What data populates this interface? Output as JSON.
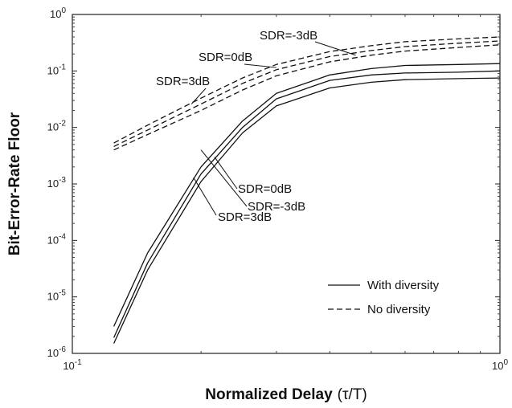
{
  "chart_data": {
    "type": "line",
    "title": "",
    "xlabel": "Normalized Delay",
    "xlabel_unit": "(τ/T)",
    "ylabel": "Bit-Error-Rate Floor",
    "xscale": "log",
    "yscale": "log",
    "xlim": [
      0.1,
      1
    ],
    "ylim": [
      1e-06,
      1
    ],
    "grid": false,
    "legend": {
      "placement": "bottom-right",
      "entries": [
        {
          "label": "With diversity",
          "style": "solid"
        },
        {
          "label": "No diversity",
          "style": "dashed"
        }
      ]
    },
    "x_ticks": [
      {
        "value": 0.1,
        "base": "10",
        "exp": "-1"
      },
      {
        "value": 1,
        "base": "10",
        "exp": "0"
      }
    ],
    "y_ticks": [
      {
        "value": 1e-06,
        "base": "10",
        "exp": "-6"
      },
      {
        "value": 1e-05,
        "base": "10",
        "exp": "-5"
      },
      {
        "value": 0.0001,
        "base": "10",
        "exp": "-4"
      },
      {
        "value": 0.001,
        "base": "10",
        "exp": "-3"
      },
      {
        "value": 0.01,
        "base": "10",
        "exp": "-2"
      },
      {
        "value": 0.1,
        "base": "10",
        "exp": "-1"
      },
      {
        "value": 1,
        "base": "10",
        "exp": "0"
      }
    ],
    "series": [
      {
        "style": "solid",
        "x": [
          0.125,
          0.15,
          0.2,
          0.25,
          0.3,
          0.4,
          0.5,
          0.6,
          0.8,
          1.0
        ],
        "y": [
          3e-06,
          6e-05,
          0.002,
          0.013,
          0.04,
          0.085,
          0.11,
          0.125,
          0.13,
          0.135
        ]
      },
      {
        "style": "solid",
        "x": [
          0.125,
          0.15,
          0.2,
          0.25,
          0.3,
          0.4,
          0.5,
          0.6,
          0.8,
          1.0
        ],
        "y": [
          1.9e-06,
          4e-05,
          0.0015,
          0.01,
          0.032,
          0.068,
          0.085,
          0.092,
          0.095,
          0.1
        ]
      },
      {
        "style": "solid",
        "x": [
          0.125,
          0.15,
          0.2,
          0.25,
          0.3,
          0.4,
          0.5,
          0.6,
          0.8,
          1.0
        ],
        "y": [
          1.5e-06,
          3e-05,
          0.0011,
          0.008,
          0.024,
          0.05,
          0.063,
          0.07,
          0.073,
          0.075
        ]
      },
      {
        "style": "dashed",
        "x": [
          0.125,
          0.15,
          0.2,
          0.25,
          0.3,
          0.4,
          0.5,
          0.6,
          0.8,
          1.0
        ],
        "y": [
          0.0053,
          0.011,
          0.033,
          0.075,
          0.13,
          0.22,
          0.28,
          0.33,
          0.37,
          0.4
        ]
      },
      {
        "style": "dashed",
        "x": [
          0.125,
          0.15,
          0.2,
          0.25,
          0.3,
          0.4,
          0.5,
          0.6,
          0.8,
          1.0
        ],
        "y": [
          0.0046,
          0.009,
          0.026,
          0.06,
          0.105,
          0.18,
          0.23,
          0.27,
          0.31,
          0.34
        ]
      },
      {
        "style": "dashed",
        "x": [
          0.125,
          0.15,
          0.2,
          0.25,
          0.3,
          0.4,
          0.5,
          0.6,
          0.8,
          1.0
        ],
        "y": [
          0.004,
          0.0075,
          0.02,
          0.046,
          0.082,
          0.145,
          0.19,
          0.225,
          0.26,
          0.29
        ]
      }
    ],
    "annotations": [
      {
        "text": "SDR=-3dB",
        "group": "dashed",
        "anchor": {
          "x": 0.46,
          "y": 0.19
        }
      },
      {
        "text": "SDR=0dB",
        "group": "dashed",
        "anchor": {
          "x": 0.3,
          "y": 0.115
        }
      },
      {
        "text": "SDR=3dB",
        "group": "dashed",
        "anchor": {
          "x": 0.19,
          "y": 0.026
        }
      },
      {
        "text": "SDR=-3dB",
        "group": "solid",
        "anchor": {
          "x": 0.2,
          "y": 0.004
        }
      },
      {
        "text": "SDR=0dB",
        "group": "solid",
        "anchor": {
          "x": 0.215,
          "y": 0.003
        }
      },
      {
        "text": "SDR=3dB",
        "group": "solid",
        "anchor": {
          "x": 0.192,
          "y": 0.0013
        }
      }
    ]
  }
}
